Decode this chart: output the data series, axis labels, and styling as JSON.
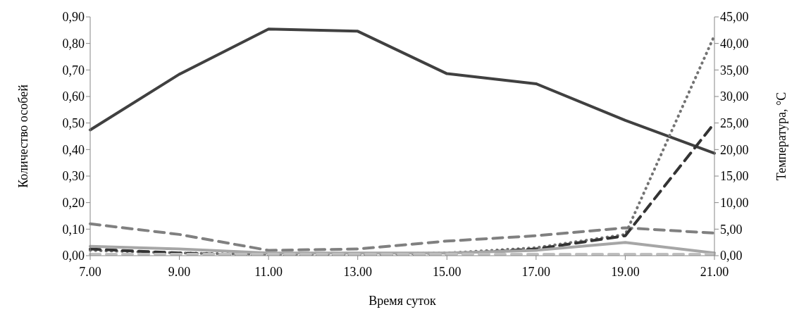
{
  "chart_data": {
    "type": "line",
    "xlabel": "Время суток",
    "ylabel": "Количество особей",
    "y2label": "Температура, °C",
    "categories": [
      "7.00",
      "9.00",
      "11.00",
      "13.00",
      "15.00",
      "17.00",
      "19.00",
      "21.00"
    ],
    "series": [
      {
        "color": "#404040",
        "axis": "y2",
        "line_style": "solid",
        "values": [
          23.7,
          34.2,
          42.7,
          42.3,
          34.3,
          32.4,
          25.5,
          19.3
        ]
      },
      {
        "color": "#808080",
        "line_style": "dashed",
        "values": [
          0.12,
          0.08,
          0.02,
          0.025,
          0.055,
          0.075,
          0.105,
          0.085
        ]
      },
      {
        "color": "#737373",
        "line_style": "dotted",
        "values": [
          0.02,
          0.01,
          0.005,
          0.005,
          0.01,
          0.03,
          0.08,
          0.83
        ]
      },
      {
        "color": "#333333",
        "line_style": "dashed",
        "values": [
          0.025,
          0.01,
          0,
          0,
          0.005,
          0.025,
          0.075,
          0.5
        ]
      },
      {
        "color": "#a6a6a6",
        "line_style": "solid",
        "values": [
          0.035,
          0.025,
          0.01,
          0.01,
          0.01,
          0.02,
          0.05,
          0.01
        ]
      },
      {
        "color": "#bfbfbf",
        "line_style": "dashed",
        "values": [
          0.005,
          0.005,
          0.005,
          0.005,
          0.005,
          0.005,
          0.005,
          0.005
        ]
      }
    ],
    "ylim": [
      0,
      0.9
    ],
    "yticks": [
      {
        "value": 0,
        "label": "0,00"
      },
      {
        "value": 0.1,
        "label": "0,10"
      },
      {
        "value": 0.2,
        "label": "0,20"
      },
      {
        "value": 0.3,
        "label": "0,30"
      },
      {
        "value": 0.4,
        "label": "0,40"
      },
      {
        "value": 0.5,
        "label": "0,50"
      },
      {
        "value": 0.6,
        "label": "0,60"
      },
      {
        "value": 0.7,
        "label": "0,70"
      },
      {
        "value": 0.8,
        "label": "0,80"
      },
      {
        "value": 0.9,
        "label": "0,90"
      }
    ],
    "y2lim": [
      0,
      45
    ],
    "y2ticks": [
      {
        "value": 0,
        "label": "0,00"
      },
      {
        "value": 5,
        "label": "5,00"
      },
      {
        "value": 10,
        "label": "10,00"
      },
      {
        "value": 15,
        "label": "15,00"
      },
      {
        "value": 20,
        "label": "20,00"
      },
      {
        "value": 25,
        "label": "25,00"
      },
      {
        "value": 30,
        "label": "30,00"
      },
      {
        "value": 35,
        "label": "35,00"
      },
      {
        "value": 40,
        "label": "40,00"
      },
      {
        "value": 45,
        "label": "45,00"
      }
    ],
    "grid": false,
    "legend": false
  }
}
